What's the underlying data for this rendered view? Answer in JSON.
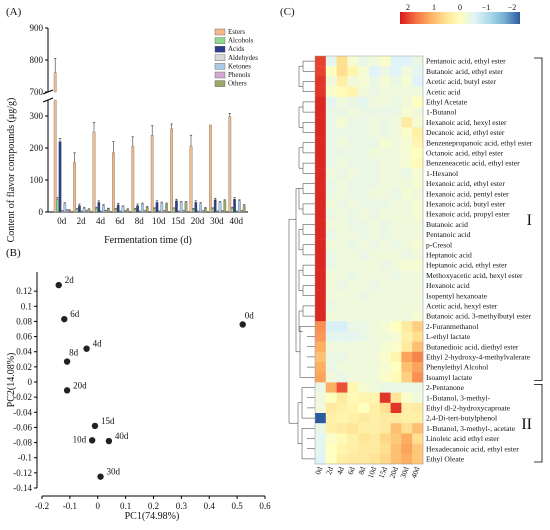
{
  "chart_data": [
    {
      "panel": "(A)",
      "type": "bar",
      "xlabel": "Fermentation time (d)",
      "ylabel": "Content of flavor compounds (μg/g)",
      "ylim_lower": [
        0,
        350
      ],
      "ylim_upper": [
        700,
        900
      ],
      "yticks": [
        0,
        100,
        200,
        300,
        700,
        800,
        900
      ],
      "categories": [
        "0d",
        "2d",
        "4d",
        "6d",
        "8d",
        "10d",
        "15d",
        "20d",
        "30d",
        "40d"
      ],
      "series": [
        {
          "name": "Esters",
          "color": "#f2b98a",
          "values": [
            760,
            155,
            250,
            185,
            205,
            240,
            260,
            205,
            272,
            298
          ],
          "errors": [
            45,
            30,
            30,
            35,
            30,
            30,
            15,
            35,
            0,
            10
          ]
        },
        {
          "name": "Alcohols",
          "color": "#8fd98f",
          "values": [
            40,
            8,
            12,
            8,
            8,
            10,
            10,
            8,
            10,
            12
          ],
          "errors": [
            5,
            3,
            3,
            3,
            3,
            3,
            3,
            3,
            3,
            3
          ]
        },
        {
          "name": "Acids",
          "color": "#2c3e8c",
          "values": [
            220,
            20,
            30,
            22,
            20,
            30,
            35,
            30,
            38,
            40
          ],
          "errors": [
            10,
            5,
            5,
            5,
            5,
            5,
            5,
            5,
            5,
            5
          ]
        },
        {
          "name": "Aldehydes",
          "color": "#d9d9d9",
          "values": [
            3,
            2,
            2,
            2,
            2,
            2,
            2,
            2,
            2,
            2
          ],
          "errors": [
            1,
            1,
            1,
            1,
            1,
            1,
            1,
            1,
            1,
            1
          ]
        },
        {
          "name": "Ketones",
          "color": "#a9cbe8",
          "values": [
            25,
            12,
            20,
            16,
            25,
            28,
            30,
            26,
            30,
            35
          ],
          "errors": [
            4,
            3,
            3,
            3,
            3,
            3,
            3,
            3,
            3,
            3
          ]
        },
        {
          "name": "Phenols",
          "color": "#d4a8d4",
          "values": [
            6,
            3,
            4,
            3,
            3,
            3,
            3,
            3,
            3,
            3
          ],
          "errors": [
            1,
            1,
            1,
            1,
            1,
            1,
            1,
            1,
            1,
            1
          ]
        },
        {
          "name": "Others",
          "color": "#9aa86a",
          "values": [
            5,
            8,
            10,
            8,
            15,
            25,
            30,
            12,
            35,
            20
          ],
          "errors": [
            2,
            2,
            2,
            2,
            2,
            3,
            3,
            2,
            3,
            3
          ]
        }
      ]
    },
    {
      "panel": "(B)",
      "type": "scatter",
      "xlabel": "PC1(74.98%)",
      "ylabel": "PC2(14.08%)",
      "xlim": [
        -0.2,
        0.6
      ],
      "ylim": [
        -0.14,
        0.14
      ],
      "xticks": [
        "-0.2",
        "-0.1",
        "0",
        "0.1",
        "0.2",
        "0.3",
        "0.4",
        "0.5",
        "0.6"
      ],
      "yticks": [
        "0.12",
        "0.1",
        "0.08",
        "0.06",
        "0.04",
        "0.02",
        "0",
        "-0.02",
        "-0.04",
        "-0.06",
        "-0.08",
        "-0.1",
        "-0.12",
        "-0.14"
      ],
      "points": [
        {
          "label": "0d",
          "x": 0.52,
          "y": 0.076,
          "anchor": "above"
        },
        {
          "label": "2d",
          "x": -0.14,
          "y": 0.128,
          "anchor": "right"
        },
        {
          "label": "4d",
          "x": -0.04,
          "y": 0.044,
          "anchor": "right"
        },
        {
          "label": "6d",
          "x": -0.12,
          "y": 0.083,
          "anchor": "right"
        },
        {
          "label": "8d",
          "x": -0.11,
          "y": 0.027,
          "anchor": "above"
        },
        {
          "label": "10d",
          "x": -0.02,
          "y": -0.077,
          "anchor": "left"
        },
        {
          "label": "15d",
          "x": -0.01,
          "y": -0.058,
          "anchor": "right"
        },
        {
          "label": "20d",
          "x": -0.11,
          "y": -0.011,
          "anchor": "right"
        },
        {
          "label": "30d",
          "x": 0.01,
          "y": -0.125,
          "anchor": "right"
        },
        {
          "label": "40d",
          "x": 0.04,
          "y": -0.078,
          "anchor": "right"
        }
      ]
    },
    {
      "panel": "(C)",
      "type": "heatmap",
      "colorbar_ticks": [
        "2",
        "1",
        "0",
        "−1",
        "−2"
      ],
      "colorbar_colors": [
        "#d7191c",
        "#f46d43",
        "#fdae61",
        "#fee090",
        "#ffffbf",
        "#e0f3f8",
        "#abd9e9",
        "#74add1",
        "#2c5aa0"
      ],
      "columns": [
        "0d",
        "2d",
        "4d",
        "6d",
        "8d",
        "10d",
        "15d",
        "20d",
        "30d",
        "40d"
      ],
      "rows": [
        {
          "label": "Pentanoic acid, ethyl ester",
          "values": [
            2.1,
            -0.5,
            0.6,
            -0.2,
            -0.4,
            -0.3,
            -0.1,
            -0.6,
            -0.6,
            -0.4
          ]
        },
        {
          "label": "Butanoic acid, ethyl ester",
          "values": [
            2.1,
            0.0,
            0.6,
            0.2,
            -0.2,
            -0.6,
            -0.4,
            -0.6,
            -0.3,
            -0.5
          ]
        },
        {
          "label": "Acetic acid, butyl ester",
          "values": [
            2.2,
            -0.3,
            0.3,
            -0.3,
            -0.2,
            -0.4,
            -0.2,
            -0.4,
            -0.2,
            -0.6
          ]
        },
        {
          "label": "Acetic acid",
          "values": [
            2.2,
            -0.1,
            0.1,
            0.2,
            -0.3,
            -0.4,
            -0.3,
            -0.3,
            -0.3,
            -0.3
          ]
        },
        {
          "label": "Ethyl Acetate",
          "values": [
            2.3,
            -0.5,
            -0.3,
            -0.4,
            -0.5,
            -0.3,
            -0.3,
            -0.4,
            -0.3,
            0.0
          ]
        },
        {
          "label": "1-Butanol",
          "values": [
            2.3,
            -0.4,
            -0.4,
            -0.3,
            -0.4,
            -0.4,
            -0.4,
            -0.4,
            -0.2,
            -0.3
          ]
        },
        {
          "label": "Hexanoic acid, hexyl ester",
          "values": [
            2.3,
            -0.4,
            -0.2,
            -0.4,
            -0.4,
            -0.3,
            -0.4,
            -0.3,
            0.4,
            -0.2
          ]
        },
        {
          "label": "Decanoic acid, ethyl ester",
          "values": [
            2.3,
            -0.4,
            -0.4,
            -0.4,
            -0.4,
            -0.3,
            -0.4,
            -0.3,
            -0.1,
            0.3
          ]
        },
        {
          "label": "Benzenepropanoic acid, ethyl ester",
          "values": [
            2.3,
            -0.4,
            -0.3,
            -0.4,
            -0.4,
            -0.4,
            -0.2,
            -0.3,
            -0.2,
            0.2
          ]
        },
        {
          "label": "Octanoic acid, ethyl ester",
          "values": [
            2.3,
            -0.4,
            -0.4,
            -0.4,
            -0.4,
            -0.3,
            -0.3,
            -0.3,
            -0.2,
            0.0
          ]
        },
        {
          "label": "Benzeneacetic acid, ethyl ester",
          "values": [
            2.3,
            -0.4,
            -0.3,
            -0.4,
            -0.4,
            -0.4,
            -0.3,
            -0.3,
            -0.2,
            0.1
          ]
        },
        {
          "label": "1-Hexanol",
          "values": [
            2.3,
            -0.3,
            -0.4,
            -0.3,
            -0.4,
            -0.4,
            -0.3,
            -0.3,
            -0.4,
            -0.2
          ]
        },
        {
          "label": "Hexanoic acid, ethyl ester",
          "values": [
            2.3,
            -0.4,
            -0.3,
            -0.4,
            -0.4,
            -0.4,
            -0.3,
            -0.3,
            -0.3,
            -0.2
          ]
        },
        {
          "label": "Hexanoic acid, pentyl ester",
          "values": [
            2.3,
            -0.4,
            -0.3,
            -0.4,
            -0.4,
            -0.3,
            -0.3,
            -0.4,
            -0.2,
            -0.3
          ]
        },
        {
          "label": "Hexanoic acid, butyl ester",
          "values": [
            2.3,
            -0.3,
            -0.4,
            -0.3,
            -0.4,
            -0.4,
            -0.4,
            -0.3,
            -0.3,
            -0.2
          ]
        },
        {
          "label": "Hexanoic acid, propyl ester",
          "values": [
            2.3,
            -0.4,
            -0.3,
            -0.4,
            -0.3,
            -0.4,
            -0.3,
            -0.3,
            -0.3,
            -0.2
          ]
        },
        {
          "label": "Butanoic acid",
          "values": [
            2.3,
            -0.3,
            -0.3,
            -0.4,
            -0.4,
            -0.3,
            -0.4,
            -0.3,
            -0.3,
            -0.3
          ]
        },
        {
          "label": "Pentanoic acid",
          "values": [
            2.3,
            -0.4,
            -0.3,
            -0.3,
            -0.4,
            -0.3,
            -0.4,
            -0.3,
            -0.3,
            -0.3
          ]
        },
        {
          "label": "p-Cresol",
          "values": [
            2.3,
            -0.3,
            -0.3,
            -0.4,
            -0.3,
            -0.4,
            -0.3,
            -0.4,
            -0.3,
            -0.2
          ]
        },
        {
          "label": "Heptanoic acid",
          "values": [
            2.3,
            -0.4,
            -0.3,
            -0.3,
            -0.4,
            -0.3,
            -0.3,
            -0.3,
            -0.4,
            -0.3
          ]
        },
        {
          "label": "Heptanoic acid, ethyl ester",
          "values": [
            2.3,
            -0.4,
            -0.3,
            -0.3,
            -0.3,
            -0.3,
            -0.4,
            -0.3,
            -0.2,
            -0.2
          ]
        },
        {
          "label": "Methoxyacetic acid, hexyl ester",
          "values": [
            2.3,
            -0.3,
            -0.3,
            -0.4,
            -0.3,
            -0.3,
            -0.3,
            -0.4,
            -0.3,
            -0.3
          ]
        },
        {
          "label": "Hexanoic acid",
          "values": [
            2.3,
            -0.3,
            -0.4,
            -0.3,
            -0.3,
            -0.4,
            -0.3,
            -0.3,
            -0.3,
            -0.3
          ]
        },
        {
          "label": "Isopentyl hexanoate",
          "values": [
            2.3,
            -0.3,
            -0.3,
            -0.3,
            -0.4,
            -0.3,
            -0.3,
            -0.3,
            -0.3,
            -0.3
          ]
        },
        {
          "label": "Acetic acid, hexyl ester",
          "values": [
            2.3,
            -0.4,
            -0.3,
            -0.3,
            -0.3,
            -0.3,
            -0.3,
            -0.3,
            -0.3,
            -0.3
          ]
        },
        {
          "label": "Butanoic acid, 3-methylbutyl ester",
          "values": [
            2.3,
            -0.3,
            -0.3,
            -0.3,
            -0.3,
            -0.3,
            -0.3,
            -0.3,
            -0.3,
            -0.2
          ]
        },
        {
          "label": "2-Furanmethanol",
          "values": [
            1.5,
            -0.7,
            -0.7,
            -0.4,
            -0.4,
            -0.3,
            -0.2,
            0.0,
            0.4,
            0.8
          ]
        },
        {
          "label": "L-ethyl lactate",
          "values": [
            1.4,
            -0.5,
            -0.5,
            -0.5,
            -0.4,
            -0.3,
            -0.3,
            -0.2,
            0.3,
            0.6
          ]
        },
        {
          "label": "Butanedioic acid, diethyl ester",
          "values": [
            1.2,
            -0.3,
            -0.3,
            -0.3,
            -0.3,
            -0.3,
            -0.2,
            -0.1,
            0.4,
            1.0
          ]
        },
        {
          "label": "Ethyl 2-hydroxy-4-methylvalerate",
          "values": [
            1.0,
            -0.4,
            -0.4,
            -0.3,
            -0.3,
            -0.3,
            -0.1,
            0.2,
            1.3,
            1.6
          ]
        },
        {
          "label": "Phenylethyl Alcohol",
          "values": [
            1.2,
            -0.4,
            -0.3,
            -0.3,
            -0.3,
            -0.3,
            -0.2,
            0.0,
            1.0,
            1.3
          ]
        },
        {
          "label": "Isoamyl lactate",
          "values": [
            1.3,
            -0.3,
            -0.4,
            -0.3,
            -0.3,
            -0.3,
            -0.1,
            0.1,
            0.8,
            1.5
          ]
        },
        {
          "label": "2-Pentanone",
          "values": [
            -0.4,
            1.2,
            2.0,
            0.2,
            -0.2,
            -0.3,
            -0.4,
            -0.4,
            -0.4,
            -0.4
          ]
        },
        {
          "label": "1-Butanol, 3-methyl-",
          "values": [
            -0.3,
            0.0,
            0.4,
            0.1,
            0.2,
            0.2,
            2.2,
            0.5,
            -0.1,
            -0.3
          ]
        },
        {
          "label": "Ethyl dl-2-hydroxycaproate",
          "values": [
            -0.3,
            0.4,
            0.3,
            0.2,
            0.0,
            0.3,
            0.6,
            2.2,
            0.3,
            0.4
          ]
        },
        {
          "label": "2,4-Di-tert-butylphenol",
          "values": [
            -2.5,
            0.3,
            0.2,
            0.3,
            0.4,
            0.3,
            0.4,
            0.4,
            0.3,
            0.3
          ]
        },
        {
          "label": "1-Butanol, 3-methyl-, acetate",
          "values": [
            -0.4,
            0.3,
            0.4,
            0.5,
            0.3,
            0.3,
            0.4,
            1.0,
            0.6,
            1.0
          ]
        },
        {
          "label": "Linoleic acid ethyl ester",
          "values": [
            -0.5,
            -0.1,
            0.1,
            0.3,
            0.5,
            0.4,
            0.7,
            0.9,
            1.2,
            0.6
          ]
        },
        {
          "label": "Hexadecanoic acid, ethyl ester",
          "values": [
            -0.5,
            0.0,
            0.2,
            0.3,
            0.4,
            0.4,
            0.6,
            1.0,
            1.3,
            0.9
          ]
        },
        {
          "label": "Ethyl Oleate",
          "values": [
            -0.6,
            0.0,
            0.3,
            0.4,
            0.4,
            0.5,
            0.7,
            1.0,
            1.2,
            0.9
          ]
        }
      ],
      "groups": [
        {
          "label": "I",
          "row_start": 0,
          "row_end": 31
        },
        {
          "label": "II",
          "row_start": 32,
          "row_end": 39
        }
      ]
    }
  ]
}
